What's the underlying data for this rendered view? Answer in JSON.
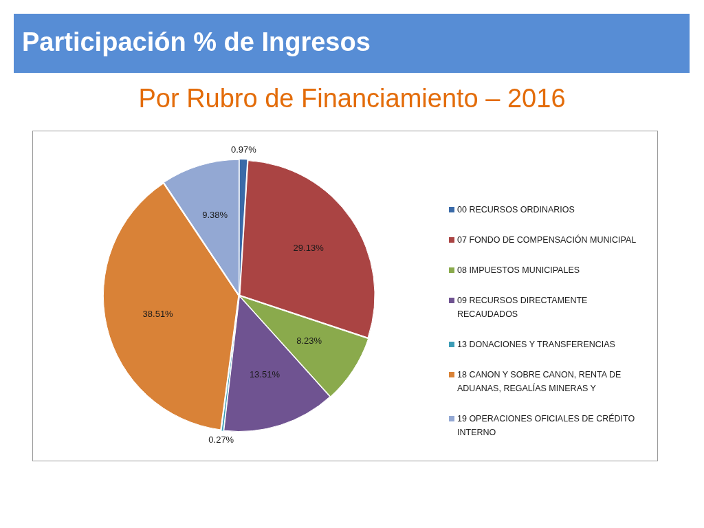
{
  "chart_data": {
    "type": "pie",
    "title": "Participación % de Ingresos",
    "subtitle": "Por Rubro de Financiamiento – 2016",
    "categories": [
      "00 RECURSOS ORDINARIOS",
      "07 FONDO DE COMPENSACIÓN MUNICIPAL",
      "08 IMPUESTOS MUNICIPALES",
      "09 RECURSOS DIRECTAMENTE RECAUDADOS",
      "13 DONACIONES Y TRANSFERENCIAS",
      "18 CANON Y SOBRE CANON, RENTA DE ADUANAS, REGALÍAS MINERAS Y",
      "19 OPERACIONES OFICIALES DE CRÉDITO INTERNO"
    ],
    "values": [
      0.97,
      29.13,
      8.23,
      13.51,
      0.27,
      38.51,
      9.38
    ],
    "colors": [
      "#3a6aa8",
      "#aa4443",
      "#8aaa4c",
      "#6f5391",
      "#3c9cb6",
      "#d98237",
      "#93a8d3"
    ],
    "value_labels": [
      "0.97%",
      "29.13%",
      "8.23%",
      "13.51%",
      "0.27%",
      "38.51%",
      "9.38%"
    ],
    "legend": "right"
  }
}
